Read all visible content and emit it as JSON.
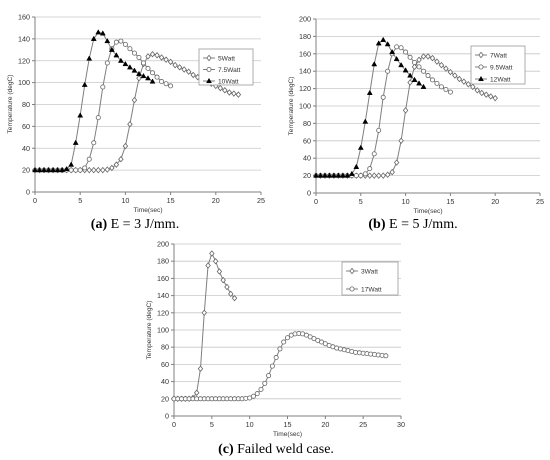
{
  "chart_data": [
    {
      "id": "a",
      "type": "line",
      "xlabel": "Time(sec)",
      "ylabel": "Temperature (degC)",
      "xlim": [
        0,
        25
      ],
      "ylim": [
        0,
        160
      ],
      "xticks": [
        0,
        5,
        10,
        15,
        20,
        25
      ],
      "yticks": [
        0,
        20,
        40,
        60,
        80,
        100,
        120,
        140,
        160
      ],
      "grid": "horizontal",
      "legend_position": "right",
      "caption_label": "(a)",
      "caption_text": " E = 3 J/mm.",
      "series": [
        {
          "name": "5Watt",
          "marker": "open-diamond",
          "x": [
            0,
            0.5,
            1,
            1.5,
            2,
            2.5,
            3,
            3.5,
            4,
            4.5,
            5,
            5.5,
            6,
            6.5,
            7,
            7.5,
            8,
            8.5,
            9,
            9.5,
            10,
            10.5,
            11,
            11.5,
            12,
            12.5,
            13,
            13.5,
            14,
            14.5,
            15,
            15.5,
            16,
            16.5,
            17,
            17.5,
            18,
            18.5,
            19,
            19.5,
            20,
            20.5,
            21,
            21.5,
            22,
            22.5
          ],
          "y": [
            20,
            20,
            20,
            20,
            20,
            20,
            20,
            20,
            20,
            20,
            20,
            20,
            20,
            20,
            20,
            20,
            20.5,
            22,
            25,
            30,
            42,
            62,
            84,
            104,
            117,
            124,
            126,
            125,
            123,
            121,
            119,
            116,
            114,
            112,
            110,
            107,
            105,
            103,
            101,
            99,
            97,
            95,
            93,
            91,
            90,
            89
          ]
        },
        {
          "name": "7.5Watt",
          "marker": "open-circle",
          "x": [
            0,
            0.5,
            1,
            1.5,
            2,
            2.5,
            3,
            3.5,
            4,
            4.5,
            5,
            5.5,
            6,
            6.5,
            7,
            7.5,
            8,
            8.5,
            9,
            9.5,
            10,
            10.5,
            11,
            11.5,
            12,
            12.5,
            13,
            13.5,
            14,
            14.5,
            15
          ],
          "y": [
            20,
            20,
            20,
            20,
            20,
            20,
            20,
            20,
            20,
            20,
            20,
            22,
            30,
            45,
            68,
            96,
            118,
            131,
            137,
            138,
            135,
            131,
            127,
            123,
            118,
            113,
            109,
            105,
            101,
            99,
            97
          ]
        },
        {
          "name": "10Watt",
          "marker": "filled-triangle",
          "x": [
            0,
            0.5,
            1,
            1.5,
            2,
            2.5,
            3,
            3.5,
            4,
            4.5,
            5,
            5.5,
            6,
            6.5,
            7,
            7.5,
            8,
            8.5,
            9,
            9.5,
            10,
            10.5,
            11,
            11.5,
            12,
            12.5,
            13
          ],
          "y": [
            20,
            20,
            20,
            20,
            20,
            20,
            20,
            21,
            25,
            45,
            70,
            98,
            122,
            140,
            146,
            145,
            138,
            130,
            125,
            120,
            117,
            114,
            111,
            108,
            106,
            104,
            101
          ]
        }
      ]
    },
    {
      "id": "b",
      "type": "line",
      "xlabel": "Time(sec)",
      "ylabel": "Temperature (degC)",
      "xlim": [
        0,
        25
      ],
      "ylim": [
        0,
        200
      ],
      "xticks": [
        0,
        5,
        10,
        15,
        20,
        25
      ],
      "yticks": [
        0,
        20,
        40,
        60,
        80,
        100,
        120,
        140,
        160,
        180,
        200
      ],
      "grid": "horizontal",
      "legend_position": "right",
      "caption_label": "(b)",
      "caption_text": " E = 5 J/mm.",
      "series": [
        {
          "name": "7Watt",
          "marker": "open-diamond",
          "x": [
            0,
            0.5,
            1,
            1.5,
            2,
            2.5,
            3,
            3.5,
            4,
            4.5,
            5,
            5.5,
            6,
            6.5,
            7,
            7.5,
            8,
            8.5,
            9,
            9.5,
            10,
            10.5,
            11,
            11.5,
            12,
            12.5,
            13,
            13.5,
            14,
            14.5,
            15,
            15.5,
            16,
            16.5,
            17,
            17.5,
            18,
            18.5,
            19,
            19.5,
            20
          ],
          "y": [
            20,
            20,
            20,
            20,
            20,
            20,
            20,
            20,
            20,
            20,
            20,
            20,
            20,
            20,
            20,
            20,
            21,
            24,
            35,
            60,
            95,
            127,
            145,
            153,
            157,
            157,
            155,
            151,
            147,
            143,
            139,
            135,
            131,
            128,
            125,
            122,
            118,
            115,
            113,
            111,
            109
          ]
        },
        {
          "name": "9.5Watt",
          "marker": "open-circle",
          "x": [
            0,
            0.5,
            1,
            1.5,
            2,
            2.5,
            3,
            3.5,
            4,
            4.5,
            5,
            5.5,
            6,
            6.5,
            7,
            7.5,
            8,
            8.5,
            9,
            9.5,
            10,
            10.5,
            11,
            11.5,
            12,
            12.5,
            13,
            13.5,
            14,
            14.5,
            15
          ],
          "y": [
            20,
            20,
            20,
            20,
            20,
            20,
            20,
            20,
            20,
            20,
            20,
            22,
            28,
            45,
            72,
            110,
            140,
            160,
            168,
            167,
            162,
            156,
            150,
            145,
            140,
            135,
            130,
            126,
            122,
            119,
            116
          ]
        },
        {
          "name": "12Watt",
          "marker": "filled-triangle",
          "x": [
            0,
            0.5,
            1,
            1.5,
            2,
            2.5,
            3,
            3.5,
            4,
            4.5,
            5,
            5.5,
            6,
            6.5,
            7,
            7.5,
            8,
            8.5,
            9,
            9.5,
            10,
            10.5,
            11,
            11.5,
            12
          ],
          "y": [
            20,
            20,
            20,
            20,
            20,
            20,
            20,
            20,
            22,
            30,
            52,
            82,
            115,
            148,
            172,
            176,
            171,
            162,
            154,
            147,
            141,
            135,
            130,
            126,
            122
          ]
        }
      ]
    },
    {
      "id": "c",
      "type": "line",
      "xlabel": "Time(sec)",
      "ylabel": "Temperature (degC)",
      "xlim": [
        0,
        30
      ],
      "ylim": [
        0,
        200
      ],
      "xticks": [
        0,
        5,
        10,
        15,
        20,
        25,
        30
      ],
      "yticks": [
        0,
        20,
        40,
        60,
        80,
        100,
        120,
        140,
        160,
        180,
        200
      ],
      "grid": "horizontal",
      "legend_position": "right",
      "caption_label": "(c)",
      "caption_text": " Failed weld case.",
      "series": [
        {
          "name": "3Watt",
          "marker": "open-diamond",
          "x": [
            0,
            0.5,
            1,
            1.5,
            2,
            2.5,
            3,
            3.5,
            4,
            4.5,
            5,
            5.5,
            6,
            6.5,
            7,
            7.5,
            8
          ],
          "y": [
            20,
            20,
            20,
            20,
            20,
            21,
            27,
            55,
            120,
            175,
            189,
            180,
            168,
            158,
            150,
            142,
            137
          ]
        },
        {
          "name": "17Watt",
          "marker": "open-circle",
          "x": [
            0,
            0.5,
            1,
            1.5,
            2,
            2.5,
            3,
            3.5,
            4,
            4.5,
            5,
            5.5,
            6,
            6.5,
            7,
            7.5,
            8,
            8.5,
            9,
            9.5,
            10,
            10.5,
            11,
            11.5,
            12,
            12.5,
            13,
            13.5,
            14,
            14.5,
            15,
            15.5,
            16,
            16.5,
            17,
            17.5,
            18,
            18.5,
            19,
            19.5,
            20,
            20.5,
            21,
            21.5,
            22,
            22.5,
            23,
            23.5,
            24,
            24.5,
            25,
            25.5,
            26,
            26.5,
            27,
            27.5,
            28
          ],
          "y": [
            20,
            20,
            20,
            20,
            20,
            20,
            20,
            20,
            20,
            20,
            20,
            20,
            20,
            20,
            20,
            20,
            20,
            20,
            20,
            20.5,
            21,
            23,
            26,
            31,
            38,
            47,
            58,
            68,
            78,
            86,
            91,
            94,
            95.5,
            96,
            95.5,
            94,
            92,
            90,
            88,
            86,
            84,
            82,
            80.5,
            79,
            78,
            77,
            76,
            75,
            74,
            73.5,
            73,
            72.5,
            72,
            71.5,
            71,
            70.5,
            70
          ]
        }
      ]
    }
  ]
}
